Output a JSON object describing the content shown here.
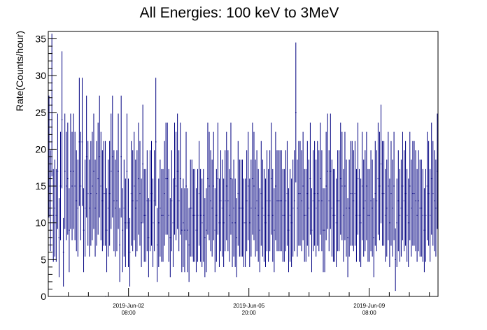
{
  "chart_data": {
    "type": "scatter",
    "title": "All Energies:  100 keV to 3MeV",
    "xlabel": "",
    "ylabel": "Rate(Counts/hour)",
    "x_tick_labels": [
      {
        "line1": "2019-Jun-02",
        "line2": "08:00"
      },
      {
        "line1": "2019-Jun-05",
        "line2": "20:00"
      },
      {
        "line1": "2019-Jun-09",
        "line2": "08:00"
      }
    ],
    "x_tick_hours": [
      40,
      124,
      208
    ],
    "x_range_hours": [
      -16,
      256
    ],
    "y_ticks": [
      0,
      5,
      10,
      15,
      20,
      25,
      30,
      35
    ],
    "ylim": [
      0,
      36
    ],
    "marker_color": "#000080",
    "n_points": 270,
    "values": [
      19,
      13,
      26,
      11,
      12,
      11,
      17,
      8,
      15,
      24,
      6,
      17,
      15,
      16,
      9,
      17,
      15,
      17,
      15,
      13,
      12,
      21,
      15,
      21,
      9,
      12,
      19,
      14,
      12,
      14,
      15,
      17,
      12,
      14,
      16,
      19,
      15,
      13,
      14,
      14,
      9,
      12,
      14,
      17,
      19,
      13,
      12,
      13,
      17,
      7,
      19,
      9,
      12,
      10,
      17,
      10,
      6,
      14,
      13,
      15,
      12,
      13,
      16,
      14,
      10,
      18,
      11,
      11,
      13,
      8,
      13,
      14,
      10,
      13,
      21,
      7,
      10,
      12,
      11,
      11,
      14,
      16,
      16,
      11,
      8,
      13,
      10,
      16,
      15,
      17,
      13,
      16,
      9,
      10,
      9,
      15,
      9,
      7,
      12,
      12,
      11,
      11,
      9,
      11,
      14,
      11,
      10,
      11,
      8,
      9,
      16,
      15,
      13,
      12,
      15,
      9,
      11,
      16,
      10,
      13,
      12,
      10,
      13,
      15,
      13,
      11,
      16,
      10,
      12,
      10,
      8,
      14,
      12,
      12,
      12,
      10,
      10,
      13,
      15,
      10,
      12,
      16,
      15,
      12,
      13,
      11,
      9,
      14,
      12,
      11,
      10,
      13,
      11,
      13,
      16,
      11,
      9,
      15,
      13,
      13,
      13,
      13,
      11,
      11,
      13,
      14,
      9,
      11,
      10,
      12,
      13,
      25,
      12,
      14,
      14,
      13,
      15,
      11,
      11,
      14,
      12,
      16,
      9,
      13,
      14,
      12,
      14,
      13,
      16,
      13,
      9,
      9,
      15,
      17,
      13,
      17,
      12,
      11,
      11,
      10,
      13,
      13,
      16,
      15,
      11,
      15,
      12,
      8,
      12,
      14,
      14,
      13,
      14,
      11,
      16,
      11,
      10,
      15,
      12,
      13,
      15,
      11,
      11,
      13,
      12,
      8,
      14,
      13,
      16,
      15,
      18,
      14,
      14,
      11,
      12,
      15,
      10,
      14,
      12,
      15,
      5,
      10,
      13,
      11,
      12,
      15,
      13,
      14,
      11,
      10,
      15,
      12,
      14,
      14,
      13,
      11,
      13,
      12,
      12,
      11,
      9,
      11,
      15,
      14,
      11,
      16,
      14,
      13,
      12,
      17
    ],
    "gap_points": [
      {
        "x_hours": 24.0,
        "value": 0
      }
    ]
  }
}
